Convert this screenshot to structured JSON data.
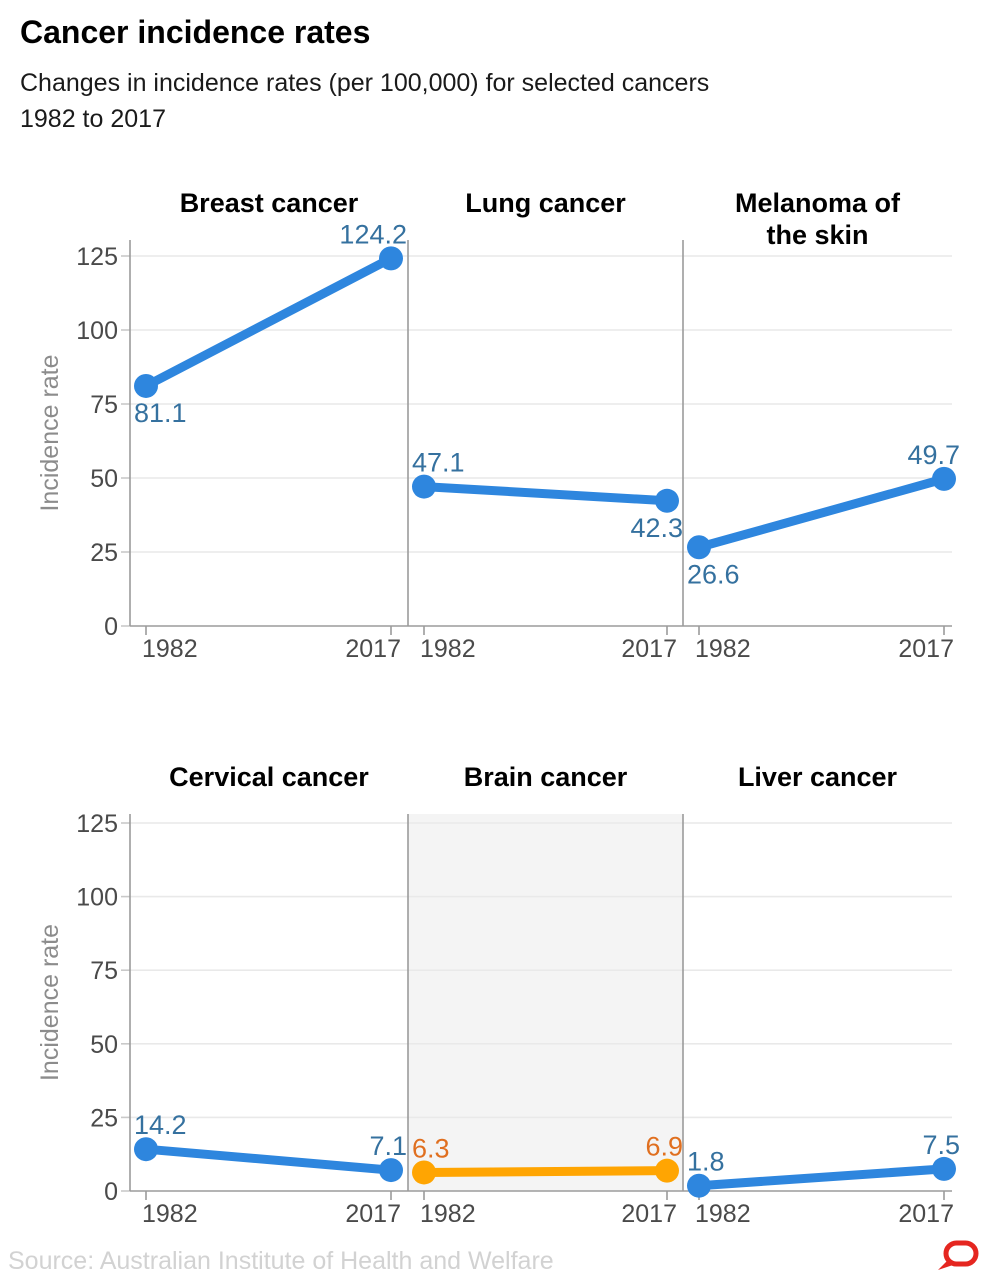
{
  "header": {
    "title": "Cancer incidence rates",
    "subtitle_lines": [
      "Changes in incidence rates (per 100,000) for selected cancers",
      "1982 to 2017"
    ]
  },
  "footer": {
    "source": "Source: Australian Institute of Health and Welfare",
    "logo": "speech-bubble-logo"
  },
  "colors": {
    "line_blue": "#2e86de",
    "label_blue": "#35719f",
    "line_orange": "#ffa502",
    "label_orange": "#e06f1f",
    "grid": "#e9e9e9",
    "axis": "#9b9b9b",
    "tick_dash": "#c9c9c9",
    "tick_text": "#4a4a4a",
    "axis_title_text": "#8c8c8c",
    "panel_title_text": "#000000",
    "highlight_bg": "#f4f4f4",
    "logo_red": "#e52620"
  },
  "chart_data": {
    "type": "line",
    "x_categories": [
      "1982",
      "2017"
    ],
    "ylabel": "Incidence rate",
    "ylim": [
      0,
      125
    ],
    "yticks": [
      0,
      25,
      50,
      75,
      100,
      125
    ],
    "grid": true,
    "legend": "none",
    "rows": [
      {
        "panels": [
          {
            "title": "Breast cancer",
            "values": [
              81.1,
              124.2
            ],
            "value_labels": [
              "81.1",
              "124.2"
            ],
            "label_positions": [
              "below",
              "above"
            ],
            "highlighted": false
          },
          {
            "title": "Lung cancer",
            "values": [
              47.1,
              42.3
            ],
            "value_labels": [
              "47.1",
              "42.3"
            ],
            "label_positions": [
              "above",
              "below"
            ],
            "highlighted": false
          },
          {
            "title": "Melanoma of the skin",
            "title_lines": [
              "Melanoma of",
              "the skin"
            ],
            "values": [
              26.6,
              49.7
            ],
            "value_labels": [
              "26.6",
              "49.7"
            ],
            "label_positions": [
              "below",
              "above"
            ],
            "highlighted": false
          }
        ]
      },
      {
        "panels": [
          {
            "title": "Cervical cancer",
            "values": [
              14.2,
              7.1
            ],
            "value_labels": [
              "14.2",
              "7.1"
            ],
            "label_positions": [
              "above",
              "above"
            ],
            "highlighted": false
          },
          {
            "title": "Brain cancer",
            "values": [
              6.3,
              6.9
            ],
            "value_labels": [
              "6.3",
              "6.9"
            ],
            "label_positions": [
              "above",
              "above"
            ],
            "highlighted": true
          },
          {
            "title": "Liver cancer",
            "values": [
              1.8,
              7.5
            ],
            "value_labels": [
              "1.8",
              "7.5"
            ],
            "label_positions": [
              "above",
              "above"
            ],
            "highlighted": false
          }
        ]
      }
    ]
  }
}
